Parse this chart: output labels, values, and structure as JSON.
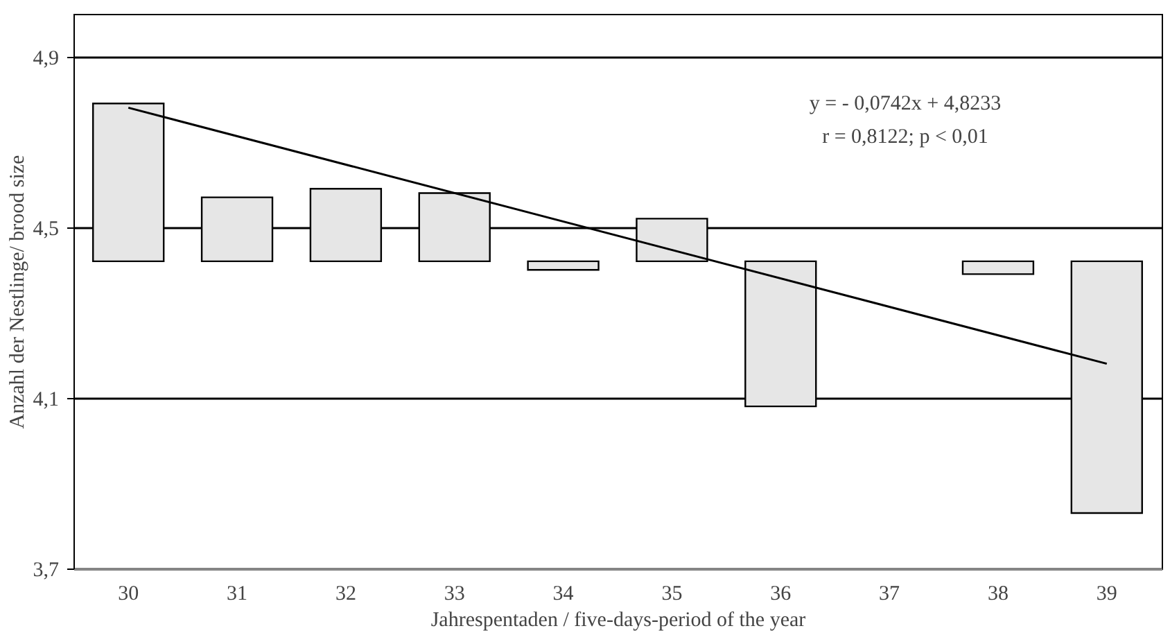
{
  "chart_data": {
    "type": "bar",
    "xlabel": "Jahrespentaden / five-days-period of the year",
    "ylabel": "Anzahl der Nestlinge/ brood size",
    "categories": [
      "30",
      "31",
      "32",
      "33",
      "34",
      "35",
      "36",
      "37",
      "38",
      "39"
    ],
    "series": [
      {
        "color": "#e6e6e6",
        "base": [
          4.42,
          4.42,
          4.42,
          4.42,
          4.42,
          4.42,
          4.42,
          null,
          4.42,
          4.42
        ],
        "values": [
          0.37,
          0.15,
          0.17,
          0.16,
          -0.02,
          0.1,
          -0.34,
          null,
          -0.03,
          -0.59
        ]
      },
      {
        "type": "line",
        "color": "#000000",
        "x": [
          "30",
          "39"
        ],
        "values": [
          4.78,
          4.18
        ]
      }
    ],
    "ylim": [
      3.7,
      5.0
    ],
    "yticks": [
      {
        "value": 3.7,
        "label": "3,7"
      },
      {
        "value": 4.1,
        "label": "4,1"
      },
      {
        "value": 4.5,
        "label": "4,5"
      },
      {
        "value": 4.9,
        "label": "4,9"
      }
    ],
    "grid": "y",
    "marker": "none",
    "line_style": "solid",
    "annotations": [
      "y = - 0,0742x + 4,8233",
      "r = 0,8122; p < 0,01"
    ]
  }
}
